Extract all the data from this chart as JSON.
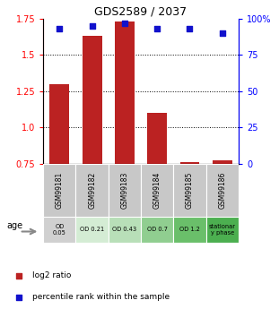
{
  "title": "GDS2589 / 2037",
  "samples": [
    "GSM99181",
    "GSM99182",
    "GSM99183",
    "GSM99184",
    "GSM99185",
    "GSM99186"
  ],
  "log2_ratio": [
    1.3,
    1.63,
    1.73,
    1.1,
    0.762,
    0.772
  ],
  "percentile_rank": [
    93,
    95,
    97,
    93,
    93,
    90
  ],
  "ylim_left": [
    0.75,
    1.75
  ],
  "ylim_right": [
    0,
    100
  ],
  "yticks_left": [
    0.75,
    1.0,
    1.25,
    1.5,
    1.75
  ],
  "yticks_right": [
    0,
    25,
    50,
    75,
    100
  ],
  "bar_color": "#bb2222",
  "scatter_color": "#1111cc",
  "dotted_lines": [
    1.0,
    1.25,
    1.5
  ],
  "age_labels": [
    "OD\n0.05",
    "OD 0.21",
    "OD 0.43",
    "OD 0.7",
    "OD 1.2",
    "stationar\ny phase"
  ],
  "age_colors": [
    "#d0d0d0",
    "#d4ecd4",
    "#b8dfb8",
    "#90ce90",
    "#6abf6a",
    "#4caf50"
  ],
  "sample_bg_color": "#c8c8c8",
  "legend_log2_label": "log2 ratio",
  "legend_pct_label": "percentile rank within the sample",
  "bar_width": 0.6,
  "base_value": 0.75
}
